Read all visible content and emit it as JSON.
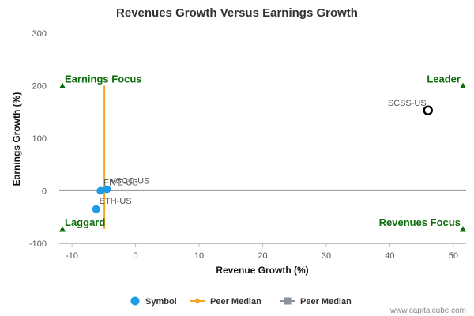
{
  "chart_data": {
    "type": "scatter",
    "title": "Revenues Growth Versus Earnings Growth",
    "xlabel": "Revenue Growth (%)",
    "ylabel": "Earnings Growth (%)",
    "xlim": [
      -12,
      52
    ],
    "ylim": [
      -100,
      300
    ],
    "xticks": [
      -10,
      0,
      10,
      20,
      30,
      40,
      50
    ],
    "yticks": [
      -100,
      0,
      100,
      200,
      300
    ],
    "grid": false,
    "legend_position": "bottom",
    "series": [
      {
        "name": "Symbol",
        "color": "#1e9be6",
        "points": [
          {
            "label": "FIVE-US",
            "x": -5.5,
            "y": 0
          },
          {
            "label": "VSCO-US",
            "x": -4.5,
            "y": 3
          },
          {
            "label": "ETH-US",
            "x": -6.2,
            "y": -35
          }
        ]
      },
      {
        "name": "Peer Median",
        "color": "#f2a623",
        "x": -4.9,
        "y_range": [
          -73,
          200
        ]
      },
      {
        "name": "Peer Median",
        "color": "#8c929c",
        "y": 1,
        "x_range": [
          -12,
          52
        ]
      }
    ],
    "highlight": {
      "label": "SCSS-US",
      "x": 46,
      "y": 153,
      "color": "#000000"
    },
    "quadrants": [
      {
        "label": "Earnings Focus",
        "corner": "top-left",
        "x": -11.5,
        "y": 200
      },
      {
        "label": "Leader",
        "corner": "top-right",
        "x": 51.5,
        "y": 200
      },
      {
        "label": "Laggard",
        "corner": "bottom-left",
        "x": -11.5,
        "y": -73
      },
      {
        "label": "Revenues Focus",
        "corner": "bottom-right",
        "x": 51.5,
        "y": -73
      }
    ],
    "marker_color": "#0b6e0b"
  },
  "credit": "www.capitalcube.com"
}
